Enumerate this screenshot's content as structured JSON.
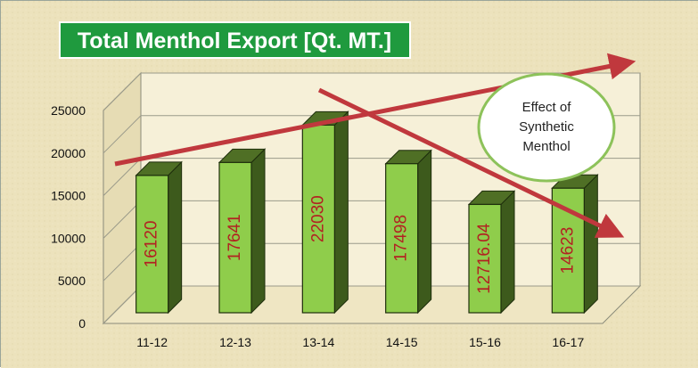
{
  "chart_data": {
    "type": "bar",
    "title": "Total Menthol Export [Qt. MT.]",
    "categories": [
      "11-12",
      "12-13",
      "13-14",
      "14-15",
      "15-16",
      "16-17"
    ],
    "values": [
      16120,
      17641,
      22030,
      17498,
      12716.04,
      14623
    ],
    "value_labels": [
      "16120",
      "17641",
      "22030",
      "17498",
      "12716.04",
      "14623"
    ],
    "ylim": [
      0,
      25000
    ],
    "yticks": [
      0,
      5000,
      10000,
      15000,
      20000,
      25000
    ],
    "grid": true,
    "annotation": [
      "Effect of",
      "Synthetic",
      "Menthol"
    ],
    "colors": {
      "bar_front": "#8fcd4b",
      "bar_side": "#3d5a1c",
      "bar_top": "#4f6f25",
      "title_bg": "#1f9a3e",
      "title_text": "#ffffff",
      "arrow": "#c0383d",
      "label_text": "#b22222",
      "ellipse_border": "#8dc25a"
    }
  }
}
